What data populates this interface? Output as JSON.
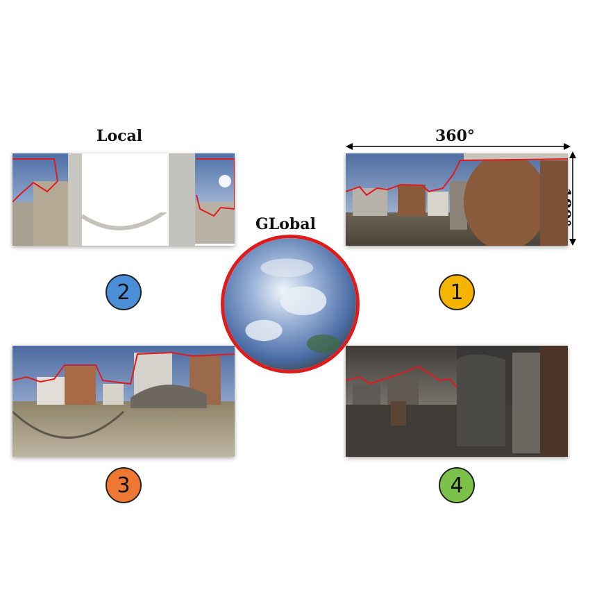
{
  "labels": {
    "local": "Local",
    "global": "GLobal",
    "width_degrees": "360°",
    "height_degrees": "180°"
  },
  "badges": [
    {
      "number": "1",
      "color": "#f5b400"
    },
    {
      "number": "2",
      "color": "#4a8fd8"
    },
    {
      "number": "3",
      "color": "#ee7733"
    },
    {
      "number": "4",
      "color": "#7cc24a"
    }
  ],
  "colors": {
    "outline": "#e01b1b",
    "sky": "#6e8fc2",
    "ground": "#9a8e7c"
  }
}
